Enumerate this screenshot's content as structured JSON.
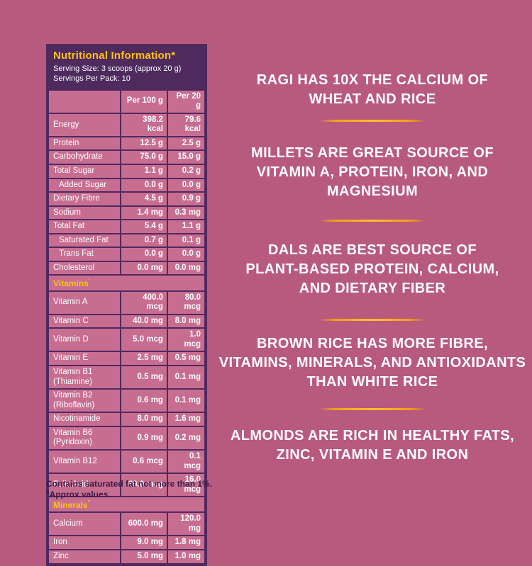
{
  "colors": {
    "bg": "#b85a7d",
    "panel": "#4e2a5f",
    "border": "#522860",
    "cell": "#c76e90",
    "accent": "#ffc20e",
    "divider": "#f39b1a",
    "ink-dark": "#3b1c47",
    "ink-light": "#ffffff"
  },
  "nutrition_panel": {
    "title": "Nutritional Information*",
    "serving_size": "Serving Size: 3 scoops (approx 20 g)",
    "servings_per_pack": "Servings Per Pack: 10",
    "columns": {
      "label": "",
      "per100": "Per 100 g",
      "per20": "Per 20 g"
    },
    "rows": [
      {
        "label": "Energy",
        "per100": "398.2 kcal",
        "per20": "79.6 kcal"
      },
      {
        "label": "Protein",
        "per100": "12.5 g",
        "per20": "2.5 g"
      },
      {
        "label": "Carbohydrate",
        "per100": "75.0 g",
        "per20": "15.0 g"
      },
      {
        "label": "Total Sugar",
        "per100": "1.1 g",
        "per20": "0.2 g"
      },
      {
        "label": "Added Sugar",
        "indent": true,
        "per100": "0.0 g",
        "per20": "0.0 g"
      },
      {
        "label": "Dietary Fibre",
        "per100": "4.5 g",
        "per20": "0.9 g"
      },
      {
        "label": "Sodium",
        "per100": "1.4 mg",
        "per20": "0.3 mg"
      },
      {
        "label": "Total Fat",
        "per100": "5.4 g",
        "per20": "1.1 g"
      },
      {
        "label": "Saturated Fat",
        "indent": true,
        "per100": "0.7 g",
        "per20": "0.1 g"
      },
      {
        "label": "Trans Fat",
        "indent": true,
        "per100": "0.0 g",
        "per20": "0.0 g"
      },
      {
        "label": "Cholesterol",
        "per100": "0.0 mg",
        "per20": "0.0 mg"
      },
      {
        "section": true,
        "label": "Vitamins",
        "sup": "'"
      },
      {
        "label": "Vitamin A",
        "per100": "400.0 mcg",
        "per20": "80.0 mcg"
      },
      {
        "label": "Vitamin C",
        "per100": "40.0 mg",
        "per20": "8.0 mg"
      },
      {
        "label": "Vitamin D",
        "per100": "5.0 mcg",
        "per20": "1.0 mcg"
      },
      {
        "label": "Vitamin E",
        "per100": "2.5 mg",
        "per20": "0.5 mg"
      },
      {
        "label": "Vitamin B1 (Thiamine)",
        "per100": "0.5 mg",
        "per20": "0.1 mg"
      },
      {
        "label": "Vitamin B2 (Riboflavin)",
        "per100": "0.6 mg",
        "per20": "0.1 mg"
      },
      {
        "label": "Nicotinamide",
        "per100": "8.0 mg",
        "per20": "1.6 mg"
      },
      {
        "label": "Vitamin B6 (Pyridoxin)",
        "per100": "0.9 mg",
        "per20": "0.2 mg"
      },
      {
        "label": "Vitamin B12",
        "per100": "0.6 mcg",
        "per20": "0.1 mcg"
      },
      {
        "label": "Folic Acid",
        "per100": "80.0 mcg",
        "per20": "16.0 mcg"
      },
      {
        "section": true,
        "label": "Minerals",
        "sup": "''"
      },
      {
        "label": "Calcium",
        "per100": "600.0 mg",
        "per20": "120.0 mg"
      },
      {
        "label": "Iron",
        "per100": "9.0 mg",
        "per20": "1.8 mg"
      },
      {
        "label": "Zinc",
        "per100": "5.0 mg",
        "per20": "1.0 mg"
      }
    ],
    "footnotes": [
      "Contains saturated fat not more than 1%.",
      "*Approx values."
    ]
  },
  "facts": {
    "items": [
      {
        "lines": [
          "RAGI HAS 10X THE CALCIUM OF",
          "WHEAT AND RICE"
        ]
      },
      {
        "lines": [
          "MILLETS ARE GREAT SOURCE OF",
          "VITAMIN A, PROTEIN, IRON, AND",
          "MAGNESIUM"
        ]
      },
      {
        "lines": [
          "DALS ARE BEST SOURCE OF",
          "PLANT-BASED PROTEIN, CALCIUM,",
          "AND DIETARY FIBER"
        ]
      },
      {
        "lines": [
          "BROWN RICE  HAS MORE FIBRE,",
          "VITAMINS, MINERALS, AND ANTIOXIDANTS",
          "THAN WHITE RICE"
        ]
      },
      {
        "lines": [
          "ALMONDS ARE RICH IN HEALTHY FATS,",
          "ZINC, VITAMIN E AND IRON"
        ]
      }
    ]
  }
}
